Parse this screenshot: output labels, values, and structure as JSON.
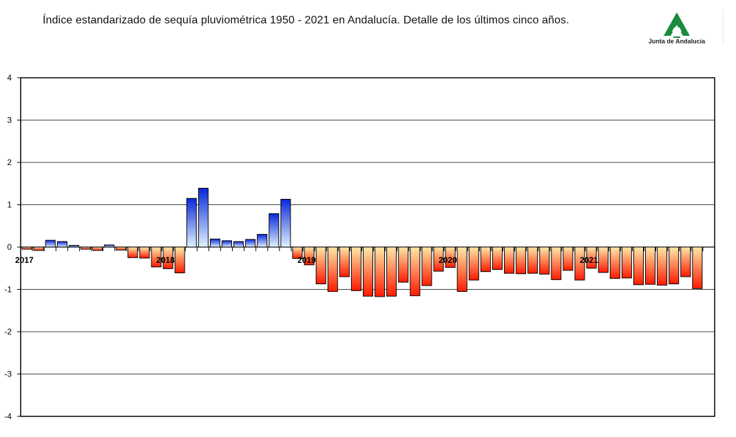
{
  "header": {
    "title": "Índice estandarizado de sequía pluviométrica 1950 - 2021 en Andalucía. Detalle de los últimos cinco años.",
    "logo_text": "Junta de Andalucía",
    "logo_color": "#1a8a3c"
  },
  "chart_data": {
    "type": "bar",
    "title": "Índice estandarizado de sequía pluviométrica 1950 - 2021 en Andalucía. Detalle de los últimos cinco años.",
    "xlabel": "",
    "ylabel": "",
    "ylim": [
      -4,
      4
    ],
    "yticks": [
      4,
      3,
      2,
      1,
      0,
      -1,
      -2,
      -3,
      -4
    ],
    "grid": true,
    "legend": "none",
    "x_tick_labels": [
      {
        "label": "2017",
        "month_index": 0
      },
      {
        "label": "2018",
        "month_index": 12
      },
      {
        "label": "2019",
        "month_index": 24
      },
      {
        "label": "2020",
        "month_index": 36
      },
      {
        "label": "2021",
        "month_index": 48
      }
    ],
    "month_slots": 59,
    "values": [
      -0.05,
      -0.08,
      0.16,
      0.13,
      0.04,
      -0.05,
      -0.08,
      0.05,
      -0.07,
      -0.25,
      -0.26,
      -0.47,
      -0.51,
      -0.61,
      1.15,
      1.39,
      0.19,
      0.15,
      0.13,
      0.18,
      0.3,
      0.79,
      1.13,
      -0.27,
      -0.42,
      -0.87,
      -1.05,
      -0.7,
      -1.03,
      -1.16,
      -1.17,
      -1.16,
      -0.83,
      -1.15,
      -0.91,
      -0.57,
      -0.48,
      -1.05,
      -0.78,
      -0.58,
      -0.53,
      -0.62,
      -0.63,
      -0.62,
      -0.64,
      -0.77,
      -0.55,
      -0.78,
      -0.5,
      -0.6,
      -0.74,
      -0.73,
      -0.89,
      -0.88,
      -0.9,
      -0.87,
      -0.7,
      -0.98
    ],
    "colors": {
      "positive_top": "#0a28d8",
      "positive_bottom": "#dff2ff",
      "negative_top": "#ffe9a8",
      "negative_bottom": "#ff1a00",
      "frame": "#000000",
      "grid": "#000000"
    }
  }
}
